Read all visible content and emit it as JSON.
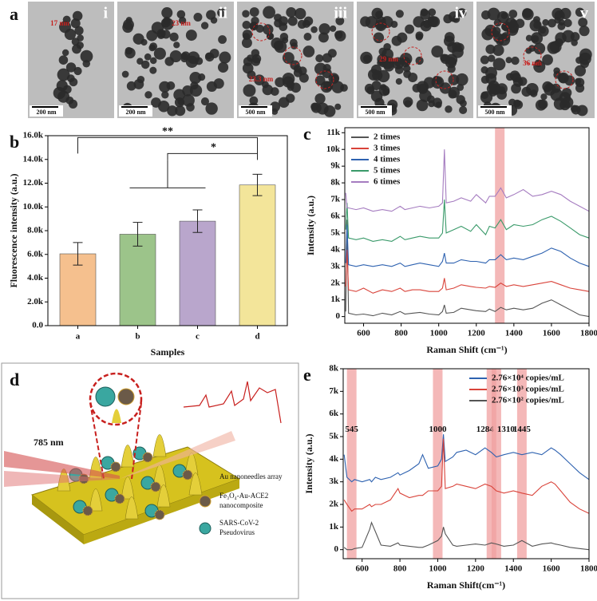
{
  "panel_a": {
    "panel": "a",
    "images": [
      {
        "label": "i",
        "scale": "200 nm",
        "size": "17 nm"
      },
      {
        "label": "ii",
        "scale": "200 nm",
        "size": "23 nm"
      },
      {
        "label": "iii",
        "scale": "500 nm",
        "size": "23.3 nm"
      },
      {
        "label": "iv",
        "scale": "500 nm",
        "size": "29 nm"
      },
      {
        "label": "v",
        "scale": "500 nm",
        "size": "36 nm"
      }
    ]
  },
  "panel_d": {
    "panel": "d",
    "laser": "785 nm",
    "legend": [
      "Au nanoneedles array",
      "Fe₃O₄-Au-ACE2",
      "nanocomposite",
      "SARS-CoV-2",
      "Pseudovirus"
    ]
  },
  "chart_data": [
    {
      "type": "bar",
      "panel": "b",
      "xlabel": "Samples",
      "ylabel": "Fluorescence intensity (a.u.)",
      "categories": [
        "a",
        "b",
        "c",
        "d"
      ],
      "values": [
        6050,
        7700,
        8800,
        11850
      ],
      "errors": [
        950,
        1000,
        950,
        900
      ],
      "colors": [
        "#f5c08e",
        "#9cc48a",
        "#b9a6cc",
        "#f3e59a"
      ],
      "annotations": [
        "**",
        "*"
      ],
      "ylim": [
        0,
        16000
      ],
      "yticks": [
        {
          "value": 0,
          "label": "0.0"
        },
        {
          "value": 2000,
          "label": "2.0k"
        },
        {
          "value": 4000,
          "label": "4.0k"
        },
        {
          "value": 6000,
          "label": "6.0k"
        },
        {
          "value": 8000,
          "label": "8.0k"
        },
        {
          "value": 10000,
          "label": "10.0k"
        },
        {
          "value": 12000,
          "label": "12.0k"
        },
        {
          "value": 14000,
          "label": "14.0k"
        },
        {
          "value": 16000,
          "label": "16.0k"
        }
      ]
    },
    {
      "type": "line",
      "panel": "c",
      "xlabel": "Raman Shift (cm⁻¹)",
      "ylabel": "Intensity (a.u.)",
      "x": [
        505,
        512,
        520,
        560,
        600,
        650,
        700,
        750,
        795,
        820,
        860,
        900,
        950,
        1000,
        1020,
        1030,
        1040,
        1080,
        1120,
        1170,
        1200,
        1250,
        1270,
        1300,
        1330,
        1360,
        1400,
        1450,
        1500,
        1550,
        1600,
        1650,
        1700,
        1750,
        1800
      ],
      "series": [
        {
          "name": "2 times",
          "color": "#555555",
          "values": [
            300,
            5800,
            200,
            100,
            150,
            50,
            200,
            100,
            300,
            150,
            200,
            250,
            150,
            100,
            300,
            700,
            200,
            250,
            500,
            400,
            350,
            300,
            450,
            300,
            550,
            400,
            500,
            400,
            500,
            800,
            1000,
            700,
            400,
            100,
            0
          ]
        },
        {
          "name": "3 times",
          "color": "#d9433a",
          "values": [
            1800,
            4000,
            1600,
            1500,
            1700,
            1400,
            1600,
            1500,
            1700,
            1500,
            1600,
            1600,
            1500,
            1500,
            1700,
            2300,
            1600,
            1700,
            1900,
            1800,
            1750,
            1700,
            1800,
            1750,
            2000,
            1800,
            1900,
            1800,
            1900,
            2000,
            2100,
            1900,
            1700,
            1600,
            1500
          ]
        },
        {
          "name": "4 times",
          "color": "#2e62b0",
          "values": [
            3200,
            5500,
            3100,
            3000,
            3100,
            3000,
            3100,
            3000,
            3200,
            3000,
            3100,
            3200,
            3100,
            3000,
            3300,
            3800,
            3200,
            3200,
            3400,
            3300,
            3300,
            3200,
            3400,
            3400,
            3700,
            3400,
            3500,
            3400,
            3600,
            3800,
            4100,
            3900,
            3500,
            3200,
            3000
          ]
        },
        {
          "name": "5 times",
          "color": "#3a9a6a",
          "values": [
            5200,
            6800,
            4700,
            4600,
            4700,
            4500,
            4600,
            4500,
            4800,
            4600,
            4700,
            4800,
            4700,
            4700,
            5000,
            7000,
            5000,
            5200,
            5400,
            5100,
            5500,
            4900,
            5400,
            5300,
            5800,
            5200,
            5500,
            5400,
            5500,
            5800,
            6000,
            5700,
            5300,
            4900,
            4700
          ]
        },
        {
          "name": "6 times",
          "color": "#a57cc0",
          "values": [
            7400,
            6500,
            6500,
            6400,
            6500,
            6300,
            6400,
            6300,
            6600,
            6400,
            6500,
            6600,
            6500,
            6600,
            6800,
            10000,
            6800,
            6900,
            7100,
            6900,
            7300,
            6800,
            7200,
            7200,
            7700,
            7100,
            7300,
            7600,
            7200,
            7300,
            7500,
            7300,
            6900,
            6600,
            6300
          ]
        }
      ],
      "bands": [
        1325
      ],
      "band_labels": false,
      "legend": "top-left",
      "xlim": [
        500,
        1800
      ],
      "xticks": [
        600,
        800,
        1000,
        1200,
        1400,
        1600,
        1800
      ],
      "ylim": [
        -400,
        11300
      ],
      "yticks": [
        0,
        {
          "value": 1000,
          "label": "1k"
        },
        {
          "value": 2000,
          "label": "2k"
        },
        {
          "value": 3000,
          "label": "3k"
        },
        {
          "value": 4000,
          "label": "4k"
        },
        {
          "value": 5000,
          "label": "5k"
        },
        {
          "value": 6000,
          "label": "6k"
        },
        {
          "value": 7000,
          "label": "7k"
        },
        {
          "value": 8000,
          "label": "8k"
        },
        {
          "value": 9000,
          "label": "9k"
        },
        {
          "value": 10000,
          "label": "10k"
        },
        {
          "value": 11000,
          "label": "11k"
        }
      ]
    },
    {
      "type": "line",
      "panel": "e",
      "xlabel": "Raman Shift(cm⁻¹)",
      "ylabel": "Intensity (a.u.)",
      "x": [
        505,
        520,
        545,
        560,
        600,
        640,
        650,
        670,
        700,
        750,
        790,
        800,
        850,
        900,
        920,
        950,
        1000,
        1020,
        1030,
        1040,
        1080,
        1100,
        1150,
        1200,
        1250,
        1284,
        1310,
        1350,
        1400,
        1445,
        1500,
        1550,
        1600,
        1620,
        1650,
        1700,
        1750,
        1800
      ],
      "series": [
        {
          "name": "2.76×10⁴ copies/mL",
          "color": "#2e62b0",
          "values": [
            4200,
            3200,
            3000,
            3100,
            3000,
            3100,
            3000,
            3200,
            3100,
            3200,
            3400,
            3300,
            3500,
            3800,
            4200,
            3600,
            3700,
            4000,
            5100,
            3900,
            4100,
            4300,
            4400,
            4200,
            4500,
            4300,
            4100,
            4200,
            4300,
            4200,
            4300,
            4200,
            4500,
            4400,
            4200,
            3800,
            3400,
            3100
          ]
        },
        {
          "name": "2.76×10³ copies/mL",
          "color": "#d9433a",
          "values": [
            2200,
            2000,
            1700,
            1800,
            1800,
            2000,
            1900,
            2000,
            2000,
            2200,
            2700,
            2500,
            2300,
            2400,
            2400,
            2600,
            2600,
            2800,
            4900,
            2700,
            2800,
            2900,
            2800,
            2700,
            2900,
            2800,
            2600,
            2500,
            2600,
            2500,
            2400,
            2800,
            3000,
            2900,
            2600,
            2100,
            1800,
            1600
          ]
        },
        {
          "name": "2.76×10² copies/mL",
          "color": "#555555",
          "values": [
            100,
            0,
            0,
            50,
            100,
            900,
            1200,
            800,
            200,
            150,
            300,
            200,
            150,
            100,
            100,
            200,
            400,
            600,
            1000,
            700,
            200,
            150,
            200,
            250,
            200,
            300,
            250,
            150,
            200,
            400,
            150,
            250,
            300,
            250,
            200,
            100,
            50,
            0
          ]
        }
      ],
      "bands": [
        545,
        1000,
        1284,
        1310,
        1445
      ],
      "band_labels": true,
      "legend": "top-right",
      "xlim": [
        500,
        1800
      ],
      "xticks": [
        600,
        800,
        1000,
        1200,
        1400,
        1600,
        1800
      ],
      "ylim": [
        -400,
        8000
      ],
      "yticks": [
        0,
        {
          "value": 1000,
          "label": "1k"
        },
        {
          "value": 2000,
          "label": "2k"
        },
        {
          "value": 3000,
          "label": "3k"
        },
        {
          "value": 4000,
          "label": "4k"
        },
        {
          "value": 5000,
          "label": "5k"
        },
        {
          "value": 6000,
          "label": "6k"
        },
        {
          "value": 7000,
          "label": "7k"
        },
        {
          "value": 8000,
          "label": "8k"
        }
      ]
    }
  ]
}
